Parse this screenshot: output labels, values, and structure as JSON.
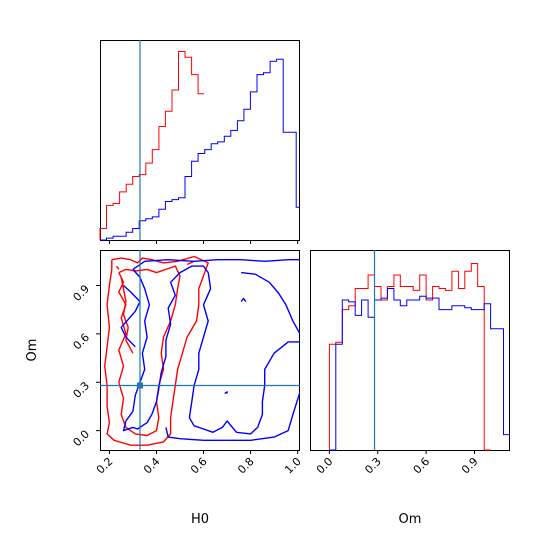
{
  "chart_data": {
    "type": "corner",
    "parameters": [
      "H0",
      "Om"
    ],
    "truth": {
      "H0": 0.33,
      "Om": 0.28
    },
    "colors": {
      "red": "#ff0000",
      "blue": "#0000ff",
      "truth": "#1f77b4"
    },
    "panels": [
      {
        "name": "H0-marginal",
        "type": "histogram",
        "xlim": [
          0.16,
          1.01
        ],
        "ylim": [
          0,
          1.04
        ],
        "tick_values": [
          0.2,
          0.4,
          0.6,
          0.8,
          1.0
        ],
        "bin_edges": [
          0.16,
          0.1878,
          0.2156,
          0.2434,
          0.2712,
          0.299,
          0.3268,
          0.3546,
          0.3824,
          0.4102,
          0.438,
          0.4658,
          0.4936,
          0.5214,
          0.5492,
          0.577,
          0.6048,
          0.6326,
          0.6604,
          0.6882,
          0.716,
          0.7438,
          0.7716,
          0.7994,
          0.8272,
          0.855,
          0.8828,
          0.9106,
          0.9384,
          0.9662,
          0.994
        ],
        "series": [
          {
            "name": "red",
            "color": "#ff0000",
            "x_start": 0.16,
            "x_end": 0.602,
            "heights": [
              0.06,
              0.18,
              0.19,
              0.25,
              0.29,
              0.33,
              0.34,
              0.4,
              0.47,
              0.59,
              0.67,
              0.78,
              0.98,
              0.95,
              0.86,
              0.76,
              0.58,
              0.12,
              0.12,
              0.0
            ]
          },
          {
            "name": "blue",
            "color": "#0000ff",
            "x_start": 0.16,
            "x_end": 1.01,
            "heights": [
              0.0,
              0.01,
              0.02,
              0.02,
              0.04,
              0.06,
              0.1,
              0.11,
              0.12,
              0.16,
              0.2,
              0.21,
              0.22,
              0.33,
              0.41,
              0.45,
              0.47,
              0.5,
              0.51,
              0.54,
              0.57,
              0.62,
              0.68,
              0.77,
              0.86,
              0.87,
              0.93,
              0.94,
              0.56,
              0.56,
              0.17
            ]
          }
        ]
      },
      {
        "name": "H0-Om-contour",
        "type": "contour",
        "xlabel": "H0",
        "ylabel": "Om",
        "xlim": [
          0.16,
          1.01
        ],
        "ylim": [
          -0.12,
          1.12
        ],
        "xticks": [
          "0.2",
          "0.4",
          "0.6",
          "0.8",
          "1.0"
        ],
        "xtick_values": [
          0.2,
          0.4,
          0.6,
          0.8,
          1.0
        ],
        "yticks": [
          "0.0",
          "0.3",
          "0.6",
          "0.9"
        ],
        "ytick_values": [
          0.0,
          0.3,
          0.6,
          0.9
        ],
        "contours": [
          {
            "color": "#ff0000",
            "points": [
              [
                0.21,
                1.06
              ],
              [
                0.25,
                1.07
              ],
              [
                0.29,
                1.06
              ],
              [
                0.32,
                1.04
              ],
              [
                0.34,
                1.07
              ],
              [
                0.38,
                1.06
              ],
              [
                0.43,
                1.04
              ],
              [
                0.49,
                1.05
              ],
              [
                0.56,
                1.08
              ],
              [
                0.62,
                1.04
              ],
              [
                0.6,
                0.96
              ],
              [
                0.58,
                0.88
              ],
              [
                0.58,
                0.78
              ],
              [
                0.57,
                0.68
              ],
              [
                0.53,
                0.58
              ],
              [
                0.51,
                0.48
              ],
              [
                0.49,
                0.38
              ],
              [
                0.48,
                0.28
              ],
              [
                0.47,
                0.18
              ],
              [
                0.46,
                0.08
              ],
              [
                0.46,
                -0.02
              ],
              [
                0.43,
                -0.07
              ],
              [
                0.36,
                -0.09
              ],
              [
                0.29,
                -0.09
              ],
              [
                0.22,
                -0.06
              ],
              [
                0.19,
                -0.02
              ],
              [
                0.2,
                0.05
              ],
              [
                0.19,
                0.15
              ],
              [
                0.19,
                0.28
              ],
              [
                0.18,
                0.4
              ],
              [
                0.19,
                0.52
              ],
              [
                0.2,
                0.64
              ],
              [
                0.19,
                0.78
              ],
              [
                0.2,
                0.9
              ],
              [
                0.21,
                1.0
              ],
              [
                0.21,
                1.06
              ]
            ]
          },
          {
            "color": "#ff0000",
            "points": [
              [
                0.24,
                0.98
              ],
              [
                0.26,
                0.92
              ],
              [
                0.24,
                0.86
              ],
              [
                0.27,
                0.78
              ],
              [
                0.25,
                0.7
              ],
              [
                0.27,
                0.6
              ],
              [
                0.24,
                0.5
              ],
              [
                0.26,
                0.4
              ],
              [
                0.24,
                0.3
              ],
              [
                0.26,
                0.2
              ],
              [
                0.25,
                0.1
              ],
              [
                0.27,
                0.02
              ],
              [
                0.31,
                -0.02
              ],
              [
                0.36,
                -0.03
              ],
              [
                0.4,
                0.0
              ],
              [
                0.41,
                0.08
              ],
              [
                0.4,
                0.18
              ],
              [
                0.41,
                0.28
              ],
              [
                0.43,
                0.38
              ],
              [
                0.42,
                0.48
              ],
              [
                0.43,
                0.58
              ],
              [
                0.46,
                0.68
              ],
              [
                0.48,
                0.78
              ],
              [
                0.49,
                0.88
              ],
              [
                0.5,
                0.96
              ],
              [
                0.48,
                1.02
              ],
              [
                0.44,
                1.0
              ],
              [
                0.4,
                0.98
              ],
              [
                0.36,
                1.0
              ],
              [
                0.31,
                0.99
              ],
              [
                0.27,
                1.0
              ],
              [
                0.24,
                0.98
              ]
            ]
          },
          {
            "color": "#ff0000",
            "points": [
              [
                0.25,
                0.95
              ],
              [
                0.26,
                0.88
              ],
              [
                0.27,
                0.8
              ],
              [
                0.26,
                0.72
              ],
              [
                0.28,
                0.64
              ],
              [
                0.27,
                0.56
              ],
              [
                0.3,
                0.48
              ]
            ]
          },
          {
            "color": "#ff0000",
            "points": [
              [
                0.24,
                1.0
              ],
              [
                0.23,
                1.02
              ]
            ]
          },
          {
            "color": "#ff0000",
            "points": [
              [
                0.53,
                1.03
              ],
              [
                0.56,
                1.05
              ]
            ]
          },
          {
            "color": "#0000ff",
            "points": [
              [
                0.3,
                1.0
              ],
              [
                0.35,
                1.05
              ],
              [
                0.45,
                1.06
              ],
              [
                0.56,
                1.05
              ],
              [
                0.66,
                1.06
              ],
              [
                0.76,
                1.06
              ],
              [
                0.86,
                1.05
              ],
              [
                0.96,
                1.06
              ],
              [
                1.01,
                1.06
              ]
            ]
          },
          {
            "color": "#0000ff",
            "points": [
              [
                1.01,
                0.55
              ],
              [
                0.96,
                0.55
              ],
              [
                0.9,
                0.48
              ],
              [
                0.86,
                0.38
              ],
              [
                0.86,
                0.28
              ],
              [
                0.85,
                0.18
              ],
              [
                0.85,
                0.1
              ],
              [
                0.83,
                0.02
              ],
              [
                0.8,
                -0.02
              ],
              [
                0.74,
                -0.01
              ],
              [
                0.7,
                0.06
              ],
              [
                0.68,
                0.02
              ],
              [
                0.64,
                -0.01
              ],
              [
                0.6,
                0.01
              ],
              [
                0.56,
                0.03
              ],
              [
                0.54,
                0.08
              ],
              [
                0.55,
                0.18
              ],
              [
                0.56,
                0.28
              ],
              [
                0.58,
                0.38
              ],
              [
                0.58,
                0.48
              ],
              [
                0.6,
                0.58
              ],
              [
                0.62,
                0.68
              ],
              [
                0.6,
                0.78
              ],
              [
                0.63,
                0.88
              ],
              [
                0.62,
                0.98
              ],
              [
                0.6,
                1.02
              ],
              [
                0.55,
                1.02
              ],
              [
                0.5,
                0.98
              ],
              [
                0.46,
                0.92
              ],
              [
                0.48,
                0.84
              ],
              [
                0.45,
                0.76
              ],
              [
                0.46,
                0.66
              ],
              [
                0.44,
                0.56
              ],
              [
                0.44,
                0.46
              ],
              [
                0.42,
                0.36
              ],
              [
                0.41,
                0.26
              ],
              [
                0.4,
                0.18
              ],
              [
                0.38,
                0.1
              ],
              [
                0.36,
                0.05
              ],
              [
                0.32,
                0.01
              ],
              [
                0.3,
                0.02
              ],
              [
                0.26,
                0.0
              ],
              [
                0.27,
                0.06
              ],
              [
                0.3,
                0.12
              ],
              [
                0.31,
                0.22
              ],
              [
                0.33,
                0.3
              ],
              [
                0.35,
                0.38
              ],
              [
                0.34,
                0.48
              ],
              [
                0.36,
                0.58
              ],
              [
                0.35,
                0.68
              ],
              [
                0.37,
                0.78
              ],
              [
                0.35,
                0.88
              ],
              [
                0.33,
                0.95
              ],
              [
                0.3,
                1.0
              ]
            ]
          },
          {
            "color": "#0000ff",
            "points": [
              [
                0.76,
                0.98
              ],
              [
                0.82,
                0.97
              ],
              [
                0.88,
                0.92
              ],
              [
                0.92,
                0.85
              ],
              [
                0.95,
                0.78
              ],
              [
                0.98,
                0.68
              ],
              [
                1.01,
                0.6
              ]
            ]
          },
          {
            "color": "#0000ff",
            "points": [
              [
                1.01,
                0.24
              ],
              [
                0.98,
                0.1
              ],
              [
                0.96,
                0.0
              ],
              [
                0.9,
                -0.04
              ],
              [
                0.8,
                -0.06
              ],
              [
                0.7,
                -0.06
              ],
              [
                0.6,
                -0.06
              ],
              [
                0.5,
                -0.05
              ],
              [
                0.45,
                -0.04
              ],
              [
                0.44,
                0.02
              ]
            ]
          },
          {
            "color": "#0000ff",
            "points": [
              [
                0.26,
                0.9
              ],
              [
                0.29,
                0.86
              ],
              [
                0.33,
                0.8
              ],
              [
                0.31,
                0.74
              ],
              [
                0.28,
                0.69
              ],
              [
                0.25,
                0.64
              ],
              [
                0.27,
                0.58
              ],
              [
                0.31,
                0.52
              ]
            ]
          },
          {
            "color": "#0000ff",
            "points": [
              [
                0.76,
                0.8
              ],
              [
                0.77,
                0.82
              ],
              [
                0.78,
                0.8
              ]
            ]
          },
          {
            "color": "#0000ff",
            "points": [
              [
                0.69,
                0.23
              ],
              [
                0.7,
                0.24
              ],
              [
                0.7,
                0.23
              ]
            ]
          }
        ]
      },
      {
        "name": "Om-marginal",
        "type": "histogram",
        "xlabel": "Om",
        "xlim": [
          -0.12,
          1.12
        ],
        "ylim": [
          0,
          1.04
        ],
        "xticks": [
          "0.0",
          "0.3",
          "0.6",
          "0.9"
        ],
        "xtick_values": [
          0.0,
          0.3,
          0.6,
          0.9
        ],
        "bin_edges": [
          0.0,
          0.04,
          0.08,
          0.12,
          0.16,
          0.2,
          0.24,
          0.28,
          0.32,
          0.36,
          0.4,
          0.44,
          0.48,
          0.52,
          0.56,
          0.6,
          0.64,
          0.68,
          0.72,
          0.76,
          0.8,
          0.84,
          0.88,
          0.92,
          0.96,
          1.0,
          1.04,
          1.08,
          1.12
        ],
        "series": [
          {
            "name": "red",
            "color": "#ff0000",
            "x_start": 0.0,
            "x_end": 1.0,
            "heights": [
              0.55,
              0.56,
              0.73,
              0.75,
              0.84,
              0.84,
              0.91,
              0.85,
              0.78,
              0.85,
              0.91,
              0.85,
              0.85,
              0.83,
              0.91,
              0.78,
              0.85,
              0.84,
              0.83,
              0.93,
              0.84,
              0.93,
              0.97,
              0.85,
              0.0
            ]
          },
          {
            "name": "blue",
            "color": "#0000ff",
            "x_start": -0.07,
            "x_end": 1.12,
            "heights": [
              0.0,
              0.55,
              0.78,
              0.77,
              0.7,
              0.78,
              0.69,
              0.78,
              0.79,
              0.84,
              0.78,
              0.75,
              0.78,
              0.78,
              0.8,
              0.79,
              0.79,
              0.73,
              0.73,
              0.75,
              0.75,
              0.74,
              0.73,
              0.73,
              0.76,
              0.63,
              0.63,
              0.08,
              0.08
            ]
          }
        ]
      }
    ]
  }
}
